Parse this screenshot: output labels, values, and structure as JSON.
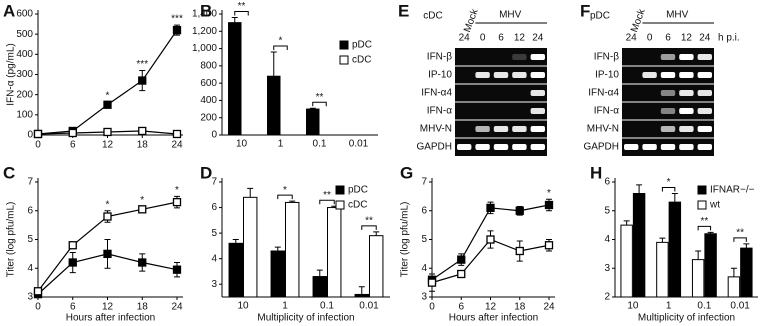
{
  "chart_data": [
    {
      "type": "line",
      "panel": "A",
      "y_label": "IFN-α (pg/mL)",
      "x": [
        0,
        6,
        12,
        18,
        24
      ],
      "xlim": [
        0,
        24
      ],
      "xticks": [
        0,
        6,
        12,
        18,
        24
      ],
      "ylim": [
        0,
        600
      ],
      "yticks": [
        0,
        100,
        200,
        300,
        400,
        500,
        600
      ],
      "series": [
        {
          "color": "#000000",
          "values": [
            5,
            20,
            150,
            270,
            520
          ],
          "errors": [
            3,
            5,
            15,
            50,
            25
          ]
        },
        {
          "color": "#ffffff",
          "values": [
            5,
            10,
            15,
            20,
            5
          ],
          "errors": [
            2,
            3,
            5,
            10,
            3
          ]
        }
      ],
      "annotations": [
        {
          "text": "*",
          "x": 12
        },
        {
          "text": "***",
          "x": 18
        },
        {
          "text": "***",
          "x": 24
        }
      ]
    },
    {
      "type": "bar",
      "panel": "B",
      "categories": [
        "10",
        "1",
        "0.1",
        "0.01"
      ],
      "ylim": [
        0,
        1400
      ],
      "yticks": [
        0,
        200,
        400,
        600,
        800,
        {
          "value": 1000,
          "label": "1,000"
        },
        {
          "value": 1200,
          "label": "1,200"
        },
        {
          "value": 1400,
          "label": "1,400"
        }
      ],
      "series": [
        {
          "name": "pDC",
          "color": "#000000",
          "values": [
            1300,
            680,
            300,
            0
          ],
          "errors": [
            60,
            280,
            10,
            0
          ]
        },
        {
          "name": "cDC",
          "color": "#ffffff",
          "values": [
            0,
            0,
            0,
            0
          ],
          "errors": [
            0,
            0,
            0,
            0
          ]
        }
      ],
      "annotations": [
        {
          "text": "**",
          "category": 0
        },
        {
          "text": "*",
          "category": 1
        },
        {
          "text": "**",
          "category": 2
        }
      ]
    },
    {
      "type": "line",
      "panel": "C",
      "y_label": "Titer (log pfu/mL)",
      "x_label": "Hours after infection",
      "x": [
        0,
        6,
        12,
        18,
        24
      ],
      "xlim": [
        0,
        24
      ],
      "xticks": [
        0,
        6,
        12,
        18,
        24
      ],
      "ylim": [
        3,
        7
      ],
      "yticks": [
        3,
        4,
        5,
        6,
        7
      ],
      "series": [
        {
          "color": "#000000",
          "values": [
            3.1,
            4.2,
            4.5,
            4.2,
            3.95
          ],
          "errors": [
            0.1,
            0.35,
            0.5,
            0.3,
            0.25
          ]
        },
        {
          "color": "#ffffff",
          "values": [
            3.2,
            4.8,
            5.8,
            6.05,
            6.3
          ],
          "errors": [
            0.1,
            0.1,
            0.2,
            0.1,
            0.2
          ]
        }
      ],
      "annotations": [
        {
          "text": "*",
          "x": 12
        },
        {
          "text": "*",
          "x": 18
        },
        {
          "text": "*",
          "x": 24
        }
      ]
    },
    {
      "type": "bar",
      "panel": "D",
      "x_label": "Multiplicity of infection",
      "categories": [
        "10",
        "1",
        "0.1",
        "0.01"
      ],
      "ylim": [
        2.5,
        7
      ],
      "yticks": [
        3,
        4,
        5,
        6,
        7
      ],
      "series": [
        {
          "name": "pDC",
          "color": "#000000",
          "values": [
            4.6,
            4.3,
            3.3,
            2.6
          ],
          "errors": [
            0.15,
            0.15,
            0.25,
            0.3
          ]
        },
        {
          "name": "cDC",
          "color": "#ffffff",
          "values": [
            6.4,
            6.2,
            6.0,
            4.9
          ],
          "errors": [
            0.35,
            0.05,
            0.05,
            0.15
          ]
        }
      ],
      "annotations": [
        {
          "text": "*",
          "category": 1
        },
        {
          "text": "**",
          "category": 2
        },
        {
          "text": "**",
          "category": 3
        }
      ]
    },
    {
      "type": "line",
      "panel": "G",
      "y_label": "Titer (log pfu/mL)",
      "x_label": "Hours after infection",
      "x": [
        0,
        6,
        12,
        18,
        24
      ],
      "xlim": [
        0,
        24
      ],
      "xticks": [
        0,
        6,
        12,
        18,
        24
      ],
      "ylim": [
        3,
        7
      ],
      "yticks": [
        3,
        4,
        5,
        6,
        7
      ],
      "series": [
        {
          "color": "#000000",
          "values": [
            3.6,
            4.3,
            6.1,
            6.0,
            6.2
          ],
          "errors": [
            0.2,
            0.2,
            0.2,
            0.15,
            0.2
          ]
        },
        {
          "color": "#ffffff",
          "values": [
            3.5,
            3.8,
            5.0,
            4.6,
            4.8
          ],
          "errors": [
            0.3,
            0.1,
            0.3,
            0.35,
            0.2
          ]
        }
      ],
      "annotations": [
        {
          "text": "*",
          "x": 24
        }
      ]
    },
    {
      "type": "bar",
      "panel": "H",
      "x_label": "Multiplicity of infection",
      "categories": [
        "10",
        "1",
        "0.1",
        "0.01"
      ],
      "ylim": [
        2,
        6
      ],
      "yticks": [
        2,
        3,
        4,
        5,
        6
      ],
      "series": [
        {
          "name": "wt",
          "color": "#ffffff",
          "values": [
            4.5,
            3.9,
            3.3,
            2.7
          ],
          "errors": [
            0.15,
            0.15,
            0.3,
            0.3
          ]
        },
        {
          "name": "IFNAR−/−",
          "color": "#000000",
          "values": [
            5.6,
            5.3,
            4.2,
            3.7
          ],
          "errors": [
            0.3,
            0.3,
            0.05,
            0.15
          ]
        }
      ],
      "annotations": [
        {
          "text": "*",
          "category": 1
        },
        {
          "text": "**",
          "category": 2
        },
        {
          "text": "**",
          "category": 3
        }
      ]
    }
  ],
  "gels": [
    {
      "panel": "E",
      "cells": "cDC",
      "mock": "Mock",
      "virus": "MHV",
      "lanes": [
        "24",
        "0",
        "6",
        "12",
        "24"
      ],
      "rows": [
        "IFN-β",
        "IP-10",
        "IFN-α4",
        "IFN-α",
        "MHV-N",
        "GAPDH"
      ]
    },
    {
      "panel": "F",
      "cells": "pDC",
      "mock": "Mock",
      "virus": "MHV",
      "lanes": [
        "24",
        "0",
        "6",
        "12",
        "24"
      ],
      "unit": "h p.i.",
      "rows": [
        "IFN-β",
        "IP-10",
        "IFN-α4",
        "IFN-α",
        "MHV-N",
        "GAPDH"
      ]
    }
  ]
}
